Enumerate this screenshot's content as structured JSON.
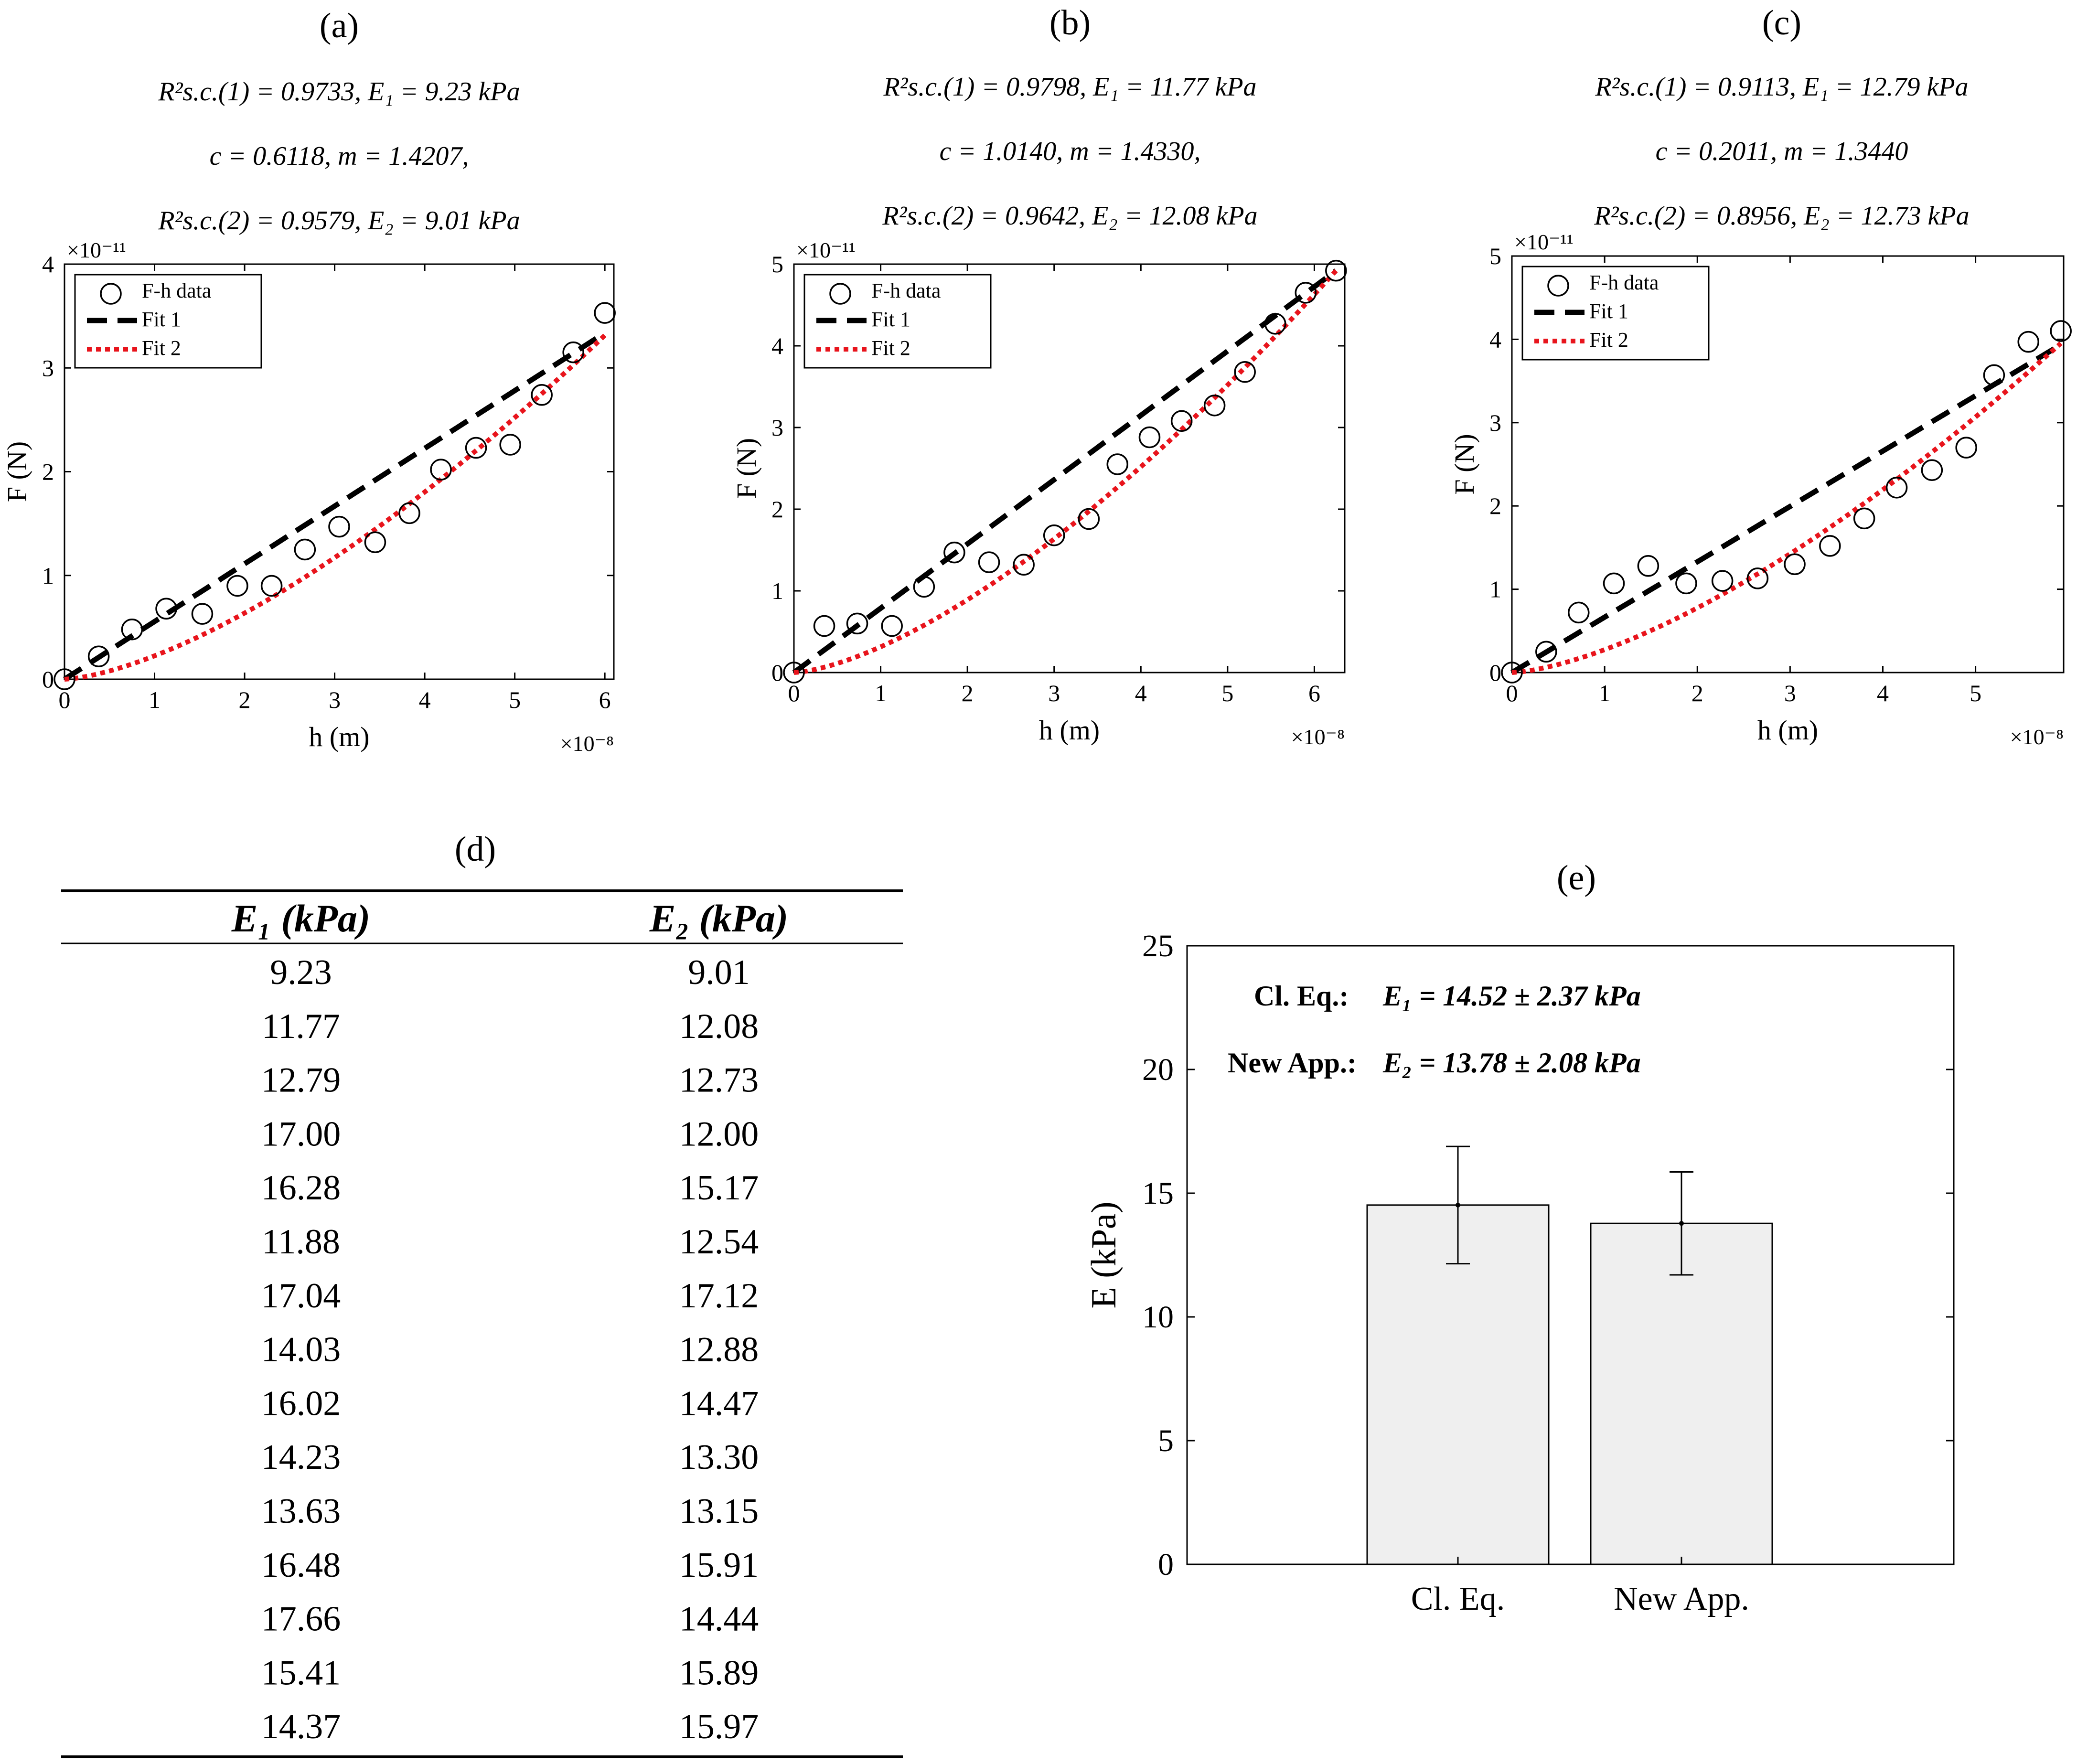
{
  "chart_data": [
    {
      "id": "a",
      "type": "scatter",
      "panel_label": "(a)",
      "annotations": [
        "R²s.c.(1) = 0.9733,  E₁ = 9.23 kPa",
        "c = 0.6118,  m = 1.4207,",
        "R²s.c.(2) = 0.9579,  E₂ = 9.01 kPa"
      ],
      "xlabel": "h (m)",
      "ylabel": "F (N)",
      "x_exponent": "×10⁻⁸",
      "y_exponent": "×10⁻¹¹",
      "xlim": [
        0,
        6.1
      ],
      "ylim": [
        0,
        4
      ],
      "xticks": [
        0,
        1,
        2,
        3,
        4,
        5,
        6
      ],
      "yticks": [
        0,
        1,
        2,
        3,
        4
      ],
      "legend": [
        "F-h data",
        "Fit 1",
        "Fit 2"
      ],
      "legend_position": "top-left",
      "data": {
        "x": [
          0,
          0.38,
          0.75,
          1.13,
          1.53,
          1.92,
          2.3,
          2.67,
          3.05,
          3.45,
          3.83,
          4.18,
          4.57,
          4.95,
          5.3,
          5.65,
          6.0
        ],
        "y": [
          0,
          0.22,
          0.48,
          0.68,
          0.63,
          0.9,
          0.9,
          1.25,
          1.47,
          1.32,
          1.6,
          2.02,
          2.23,
          2.26,
          2.74,
          3.15,
          3.53
        ]
      },
      "fit1": {
        "a": 0.5562,
        "m": 1.0,
        "xmax": 6.0,
        "note": "F = a h^m"
      },
      "fit2": {
        "a": 0.2255,
        "m": 1.5,
        "xmax": 6.0,
        "note": "F = a h^m"
      }
    },
    {
      "id": "b",
      "type": "scatter",
      "panel_label": "(b)",
      "annotations": [
        "R²s.c.(1) = 0.9798,  E₁ = 11.77 kPa",
        "c = 1.0140,  m = 1.4330,",
        "R²s.c.(2) = 0.9642,  E₂ = 12.08 kPa"
      ],
      "xlabel": "h (m)",
      "ylabel": "F (N)",
      "x_exponent": "×10⁻⁸",
      "y_exponent": "×10⁻¹¹",
      "xlim": [
        0,
        6.35
      ],
      "ylim": [
        0,
        5
      ],
      "xticks": [
        0,
        1,
        2,
        3,
        4,
        5,
        6
      ],
      "yticks": [
        0,
        1,
        2,
        3,
        4,
        5
      ],
      "legend": [
        "F-h data",
        "Fit 1",
        "Fit 2"
      ],
      "legend_position": "top-left",
      "data": {
        "x": [
          0,
          0.35,
          0.73,
          1.13,
          1.5,
          1.85,
          2.25,
          2.65,
          3.0,
          3.4,
          3.73,
          4.1,
          4.47,
          4.85,
          5.2,
          5.55,
          5.9,
          6.25
        ],
        "y": [
          0,
          0.57,
          0.6,
          0.57,
          1.05,
          1.47,
          1.35,
          1.32,
          1.68,
          1.88,
          2.55,
          2.88,
          3.08,
          3.27,
          3.68,
          4.27,
          4.65,
          4.92
        ]
      },
      "fit1": {
        "a": 0.7872,
        "m": 1.0,
        "xmax": 6.25,
        "note": "F = a h^m"
      },
      "fit2": {
        "a": 0.3149,
        "m": 1.5,
        "xmax": 6.25,
        "note": "F = a h^m"
      }
    },
    {
      "id": "c",
      "type": "scatter",
      "panel_label": "(c)",
      "annotations": [
        "R²s.c.(1) = 0.9113,  E₁ = 12.79 kPa",
        "c = 0.2011,  m = 1.3440",
        "R²s.c.(2) = 0.8956,  E₂ = 12.73 kPa"
      ],
      "xlabel": "h (m)",
      "ylabel": "F (N)",
      "x_exponent": "×10⁻⁸",
      "y_exponent": "×10⁻¹¹",
      "xlim": [
        0,
        5.95
      ],
      "ylim": [
        0,
        5
      ],
      "xticks": [
        0,
        1,
        2,
        3,
        4,
        5
      ],
      "yticks": [
        0,
        1,
        2,
        3,
        4,
        5
      ],
      "legend": [
        "F-h data",
        "Fit 1",
        "Fit 2"
      ],
      "legend_position": "top-left",
      "data": {
        "x": [
          0,
          0.37,
          0.72,
          1.1,
          1.47,
          1.88,
          2.27,
          2.65,
          3.05,
          3.43,
          3.8,
          4.15,
          4.53,
          4.9,
          5.2,
          5.57,
          5.92
        ],
        "y": [
          0,
          0.25,
          0.72,
          1.07,
          1.28,
          1.07,
          1.1,
          1.13,
          1.3,
          1.52,
          1.85,
          2.22,
          2.43,
          2.7,
          3.57,
          3.97,
          4.1
        ]
      },
      "fit1": {
        "a": 0.6647,
        "m": 1.0,
        "xmax": 5.92,
        "note": "F = a h^m"
      },
      "fit2": {
        "a": 0.2744,
        "m": 1.5,
        "xmax": 5.92,
        "note": "F = a h^m"
      }
    },
    {
      "id": "e",
      "type": "bar",
      "panel_label": "(e)",
      "categories": [
        "Cl. Eq.",
        "New App."
      ],
      "values": [
        14.52,
        13.78
      ],
      "errors": [
        2.37,
        2.08
      ],
      "ylabel": "E (kPa)",
      "xlabel": "",
      "ylim": [
        0,
        25
      ],
      "yticks": [
        0,
        5,
        10,
        15,
        20,
        25
      ],
      "annotations": [
        {
          "label": "Cl. Eq.:",
          "equation": "E₁ = 14.52 ± 2.37 kPa"
        },
        {
          "label": "New App.:",
          "equation": "E₂ = 13.78 ± 2.08 kPa"
        }
      ]
    }
  ],
  "table": {
    "panel_label": "(d)",
    "headers": [
      "E₁ (kPa)",
      "E₂ (kPa)"
    ],
    "rows": [
      [
        "9.23",
        "9.01"
      ],
      [
        "11.77",
        "12.08"
      ],
      [
        "12.79",
        "12.73"
      ],
      [
        "17.00",
        "12.00"
      ],
      [
        "16.28",
        "15.17"
      ],
      [
        "11.88",
        "12.54"
      ],
      [
        "17.04",
        "17.12"
      ],
      [
        "14.03",
        "12.88"
      ],
      [
        "16.02",
        "14.47"
      ],
      [
        "14.23",
        "13.30"
      ],
      [
        "13.63",
        "13.15"
      ],
      [
        "16.48",
        "15.91"
      ],
      [
        "17.66",
        "14.44"
      ],
      [
        "15.41",
        "15.89"
      ],
      [
        "14.37",
        "15.97"
      ]
    ]
  },
  "colors": {
    "marker": "#000000",
    "fit1": "#000000",
    "fit2": "#e8141c",
    "bar_fill": "#efefef",
    "bar_edge": "#000000"
  }
}
